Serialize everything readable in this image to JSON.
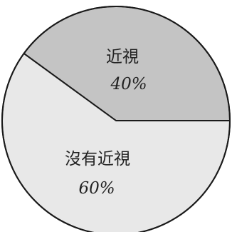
{
  "chart_data": {
    "type": "pie",
    "slices": [
      {
        "label": "近視",
        "value": 40,
        "value_label": "40%",
        "color": "#c4c4c4"
      },
      {
        "label": "沒有近視",
        "value": 60,
        "value_label": "60%",
        "color": "#e8e8e8"
      }
    ],
    "outline_color": "#1a1a1a"
  }
}
